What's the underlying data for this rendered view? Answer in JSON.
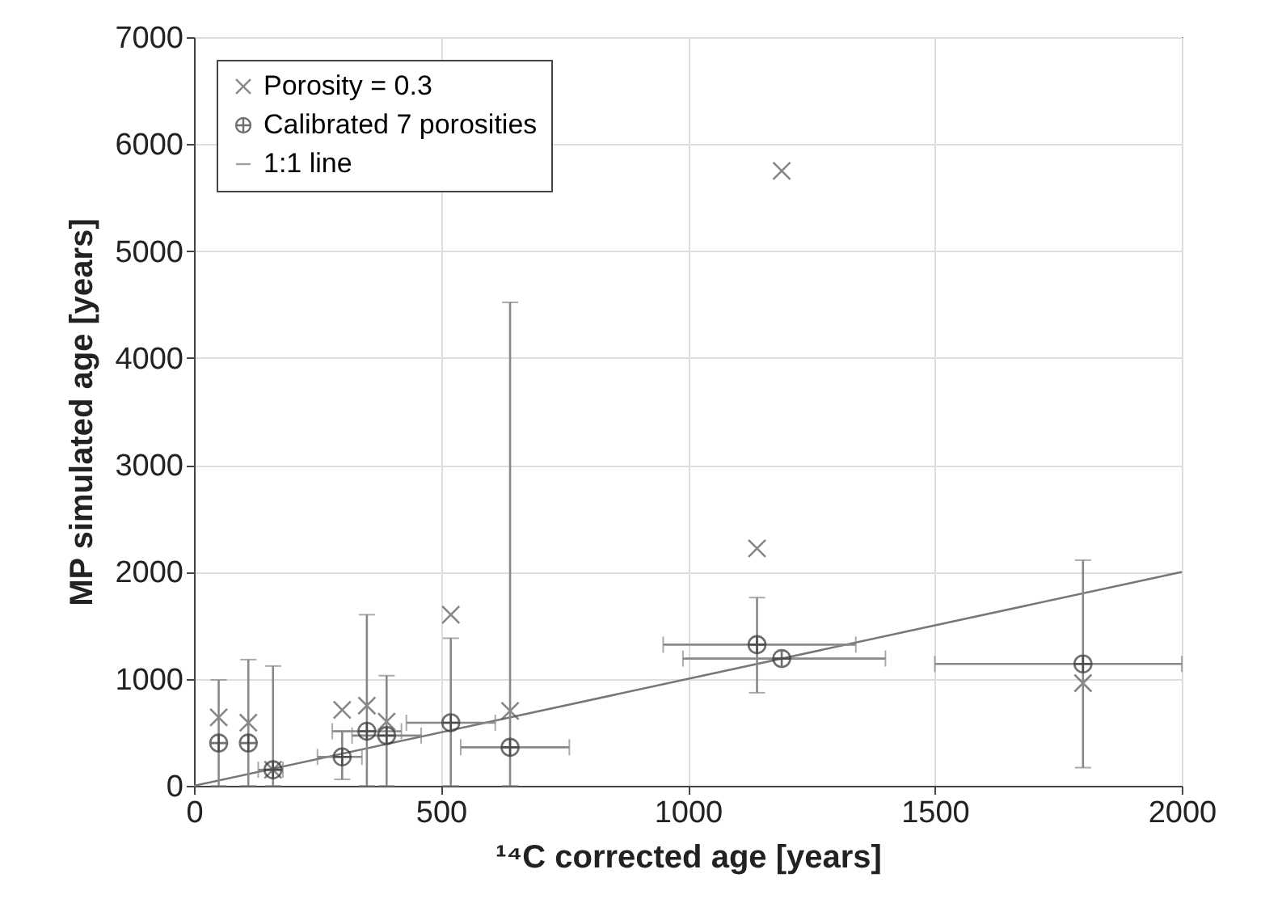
{
  "chart_data": {
    "type": "scatter",
    "xlabel": "¹⁴C corrected age [years]",
    "ylabel": "MP simulated age [years]",
    "x": [
      50,
      110,
      160,
      300,
      350,
      390,
      520,
      640,
      1140,
      1190,
      1800
    ],
    "xlim": [
      0,
      2000
    ],
    "xticks": [
      0,
      500,
      1000,
      1500,
      2000
    ],
    "ylim": [
      0,
      7000
    ],
    "yticks": [
      0,
      1000,
      2000,
      3000,
      4000,
      5000,
      6000,
      7000
    ],
    "grid": true,
    "legend": "top left",
    "series": [
      {
        "name": "Porosity = 0.3",
        "color": "#555555",
        "values": [
          640,
          590,
          150,
          710,
          750,
          600,
          1600,
          700,
          2220,
          5750,
          960
        ]
      },
      {
        "name": "Calibrated 7 porosities",
        "color": "#333333",
        "marker": "cross",
        "values": [
          400,
          400,
          150,
          270,
          510,
          470,
          590,
          360,
          1320,
          1190,
          1140
        ],
        "errors": [
          [
            0,
            990
          ],
          [
            0,
            1180
          ],
          [
            0,
            1120
          ],
          [
            60,
            510
          ],
          [
            0,
            1600
          ],
          [
            0,
            1030
          ],
          [
            0,
            1380
          ],
          [
            0,
            4520
          ],
          [
            870,
            1760
          ],
          null,
          [
            170,
            2110
          ]
        ],
        "xerrors": [
          null,
          null,
          [
            130,
            180
          ],
          [
            250,
            340
          ],
          [
            280,
            420
          ],
          [
            320,
            460
          ],
          [
            430,
            610
          ],
          [
            540,
            760
          ],
          [
            950,
            1340
          ],
          [
            990,
            1400
          ],
          [
            1500,
            2000
          ]
        ]
      },
      {
        "name": "1:1 line",
        "type": "line",
        "color": "#777777",
        "line_style": "solid",
        "x": [
          0,
          2000
        ],
        "values": [
          0,
          2000
        ]
      }
    ]
  }
}
